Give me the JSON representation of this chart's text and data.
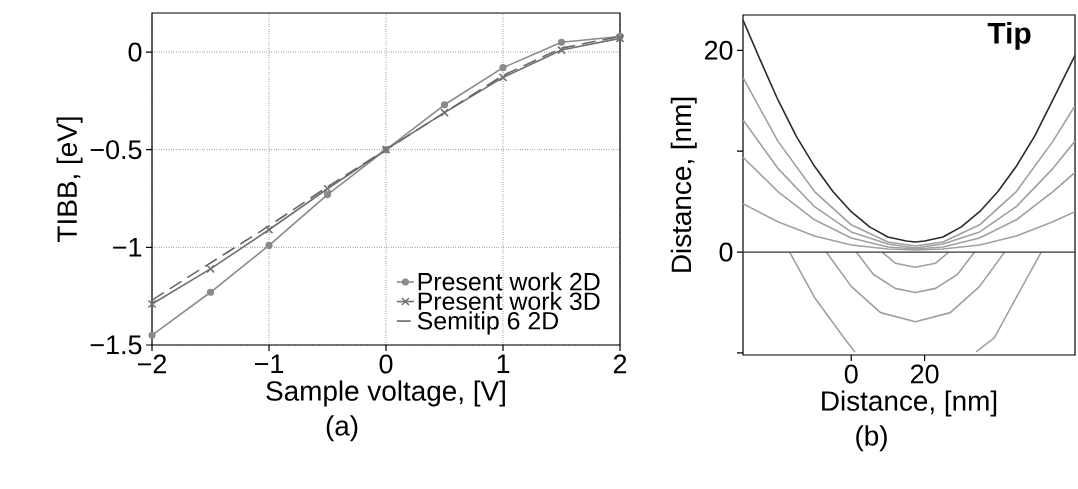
{
  "chart_data": [
    {
      "type": "line",
      "xlabel": "Sample voltage, [V]",
      "ylabel": "TIBB, [eV]",
      "annotations": [
        "(a)"
      ],
      "x": [
        -2,
        -1.5,
        -1,
        -0.5,
        0,
        0.5,
        1,
        1.5,
        2
      ],
      "series": [
        {
          "name": "Present work 2D",
          "color": "#8a8a8a",
          "marker": "circle",
          "line_style": "solid",
          "values": [
            -1.45,
            -1.23,
            -0.99,
            -0.73,
            -0.5,
            -0.27,
            -0.08,
            0.05,
            0.08
          ]
        },
        {
          "name": "Present work 3D",
          "color": "#707070",
          "marker": "cross",
          "line_style": "solid",
          "values": [
            -1.29,
            -1.11,
            -0.91,
            -0.7,
            -0.5,
            -0.31,
            -0.13,
            0.01,
            0.07
          ]
        },
        {
          "name": "Semitip 6 2D",
          "color": "#666666",
          "marker": "none",
          "line_style": "dashed",
          "values": [
            -1.27,
            -1.08,
            -0.89,
            -0.69,
            -0.5,
            -0.31,
            -0.12,
            0.02,
            0.08
          ]
        }
      ],
      "xlim": [
        -2,
        2
      ],
      "ylim": [
        -1.5,
        0.2
      ],
      "xticks": [
        {
          "value": -2,
          "label": "−2"
        },
        {
          "value": -1,
          "label": "−1"
        },
        0,
        1,
        2
      ],
      "yticks": [
        {
          "value": -1.5,
          "label": "−1.5"
        },
        {
          "value": -1,
          "label": "−1"
        },
        {
          "value": -0.5,
          "label": "−0.5"
        },
        0
      ],
      "grid": true,
      "legend": "bottom right"
    },
    {
      "type": "line",
      "xlabel": "Distance, [nm]",
      "ylabel": "Distance, [nm]",
      "annotations": [
        "(b)"
      ],
      "series": [
        {
          "name": "Tip",
          "color": "#2a2a2a",
          "x": [
            -29.5,
            -25,
            -20,
            -15,
            -10,
            -5,
            0,
            5,
            10,
            15,
            17.5,
            20,
            25,
            30,
            35,
            40,
            45,
            50,
            55,
            61
          ],
          "values": [
            23,
            19.2,
            15.1,
            11.5,
            8.5,
            6,
            4,
            2.5,
            1.5,
            1.1,
            1,
            1.1,
            1.5,
            2.5,
            4,
            6,
            8.5,
            11.5,
            15.1,
            19.5
          ]
        },
        {
          "color": "#a0a0a0",
          "x": [
            -29.5,
            -20,
            -10,
            0,
            10,
            17.5,
            25,
            35,
            45,
            55,
            61
          ],
          "values": [
            17.3,
            11,
            6,
            2.7,
            1,
            0.6,
            1,
            2.7,
            6,
            11,
            14.5
          ]
        },
        {
          "color": "#a0a0a0",
          "x": [
            -29.5,
            -20,
            -10,
            0,
            10,
            17.5,
            25,
            35,
            45,
            55,
            61
          ],
          "values": [
            13.1,
            8.3,
            4.5,
            2,
            0.8,
            0.4,
            0.8,
            2,
            4.5,
            8.3,
            11
          ]
        },
        {
          "color": "#a0a0a0",
          "x": [
            -29.5,
            -20,
            -10,
            0,
            10,
            17.5,
            25,
            35,
            45,
            55,
            61
          ],
          "values": [
            9.4,
            6,
            3.2,
            1.4,
            0.5,
            0.3,
            0.5,
            1.4,
            3.2,
            6,
            7.9
          ]
        },
        {
          "color": "#a0a0a0",
          "x": [
            -29.5,
            -20,
            -10,
            0,
            10,
            17.5,
            25,
            35,
            45,
            55,
            61
          ],
          "values": [
            4.8,
            3,
            1.6,
            0.7,
            0.3,
            0.2,
            0.3,
            0.7,
            1.6,
            3,
            4
          ]
        },
        {
          "color": "#a0a0a0",
          "x": [
            8.4,
            12,
            17.5,
            23,
            26.6
          ],
          "values": [
            0,
            -1.1,
            -1.5,
            -1.1,
            0
          ]
        },
        {
          "color": "#a0a0a0",
          "x": [
            1.4,
            6,
            12,
            17.5,
            23,
            29,
            33.6
          ],
          "values": [
            0,
            -2.2,
            -3.6,
            -4,
            -3.6,
            -2.2,
            0
          ]
        },
        {
          "color": "#a0a0a0",
          "x": [
            -6.8,
            0,
            8,
            17.5,
            27,
            35,
            41.8
          ],
          "values": [
            0,
            -3.4,
            -6,
            -6.9,
            -6,
            -3.4,
            0
          ]
        },
        {
          "color": "#a0a0a0",
          "x": [
            -16.8,
            -10,
            -2,
            1,
            17.5,
            34,
            39,
            45,
            51.8
          ],
          "values": [
            0,
            -4.5,
            -8.5,
            -9.9,
            null,
            -9.9,
            -8.5,
            -4.5,
            0
          ]
        }
      ],
      "ref_lines": [
        {
          "axis": "y",
          "value": 0,
          "color": "#333333"
        }
      ],
      "xlim": [
        -29.5,
        61
      ],
      "ylim": [
        -10.2,
        23.5
      ],
      "xticks": [
        0,
        20
      ],
      "yticks": [
        {
          "value": -10,
          "label": null
        },
        0,
        {
          "value": 10,
          "label": null
        },
        20
      ],
      "legend": false
    }
  ]
}
